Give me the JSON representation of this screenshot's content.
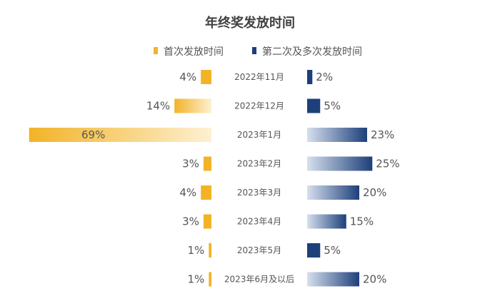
{
  "chart_data": {
    "type": "bar",
    "title": "年终奖发放时间",
    "legend_position": "top",
    "categories": [
      "2022年11月",
      "2022年12月",
      "2023年1月",
      "2023年2月",
      "2023年3月",
      "2023年4月",
      "2023年5月",
      "2023年6月及以后"
    ],
    "series": [
      {
        "name": "首次发放时间",
        "values": [
          4,
          14,
          69,
          3,
          4,
          3,
          1,
          1
        ],
        "labels": [
          "4%",
          "14%",
          "69%",
          "3%",
          "4%",
          "3%",
          "1%",
          "1%"
        ],
        "direction": "left",
        "color": "#f2b327",
        "color_fade": "#fdf0d2"
      },
      {
        "name": "第二次及多次发放时间",
        "values": [
          2,
          5,
          23,
          25,
          20,
          15,
          5,
          20
        ],
        "labels": [
          "2%",
          "5%",
          "23%",
          "25%",
          "20%",
          "15%",
          "5%",
          "20%"
        ],
        "direction": "right",
        "color": "#1d3f7a",
        "color_fade": "#d6e0ee"
      }
    ],
    "colors": {
      "title": "#404040",
      "label": "#555555",
      "category": "#555555"
    }
  }
}
